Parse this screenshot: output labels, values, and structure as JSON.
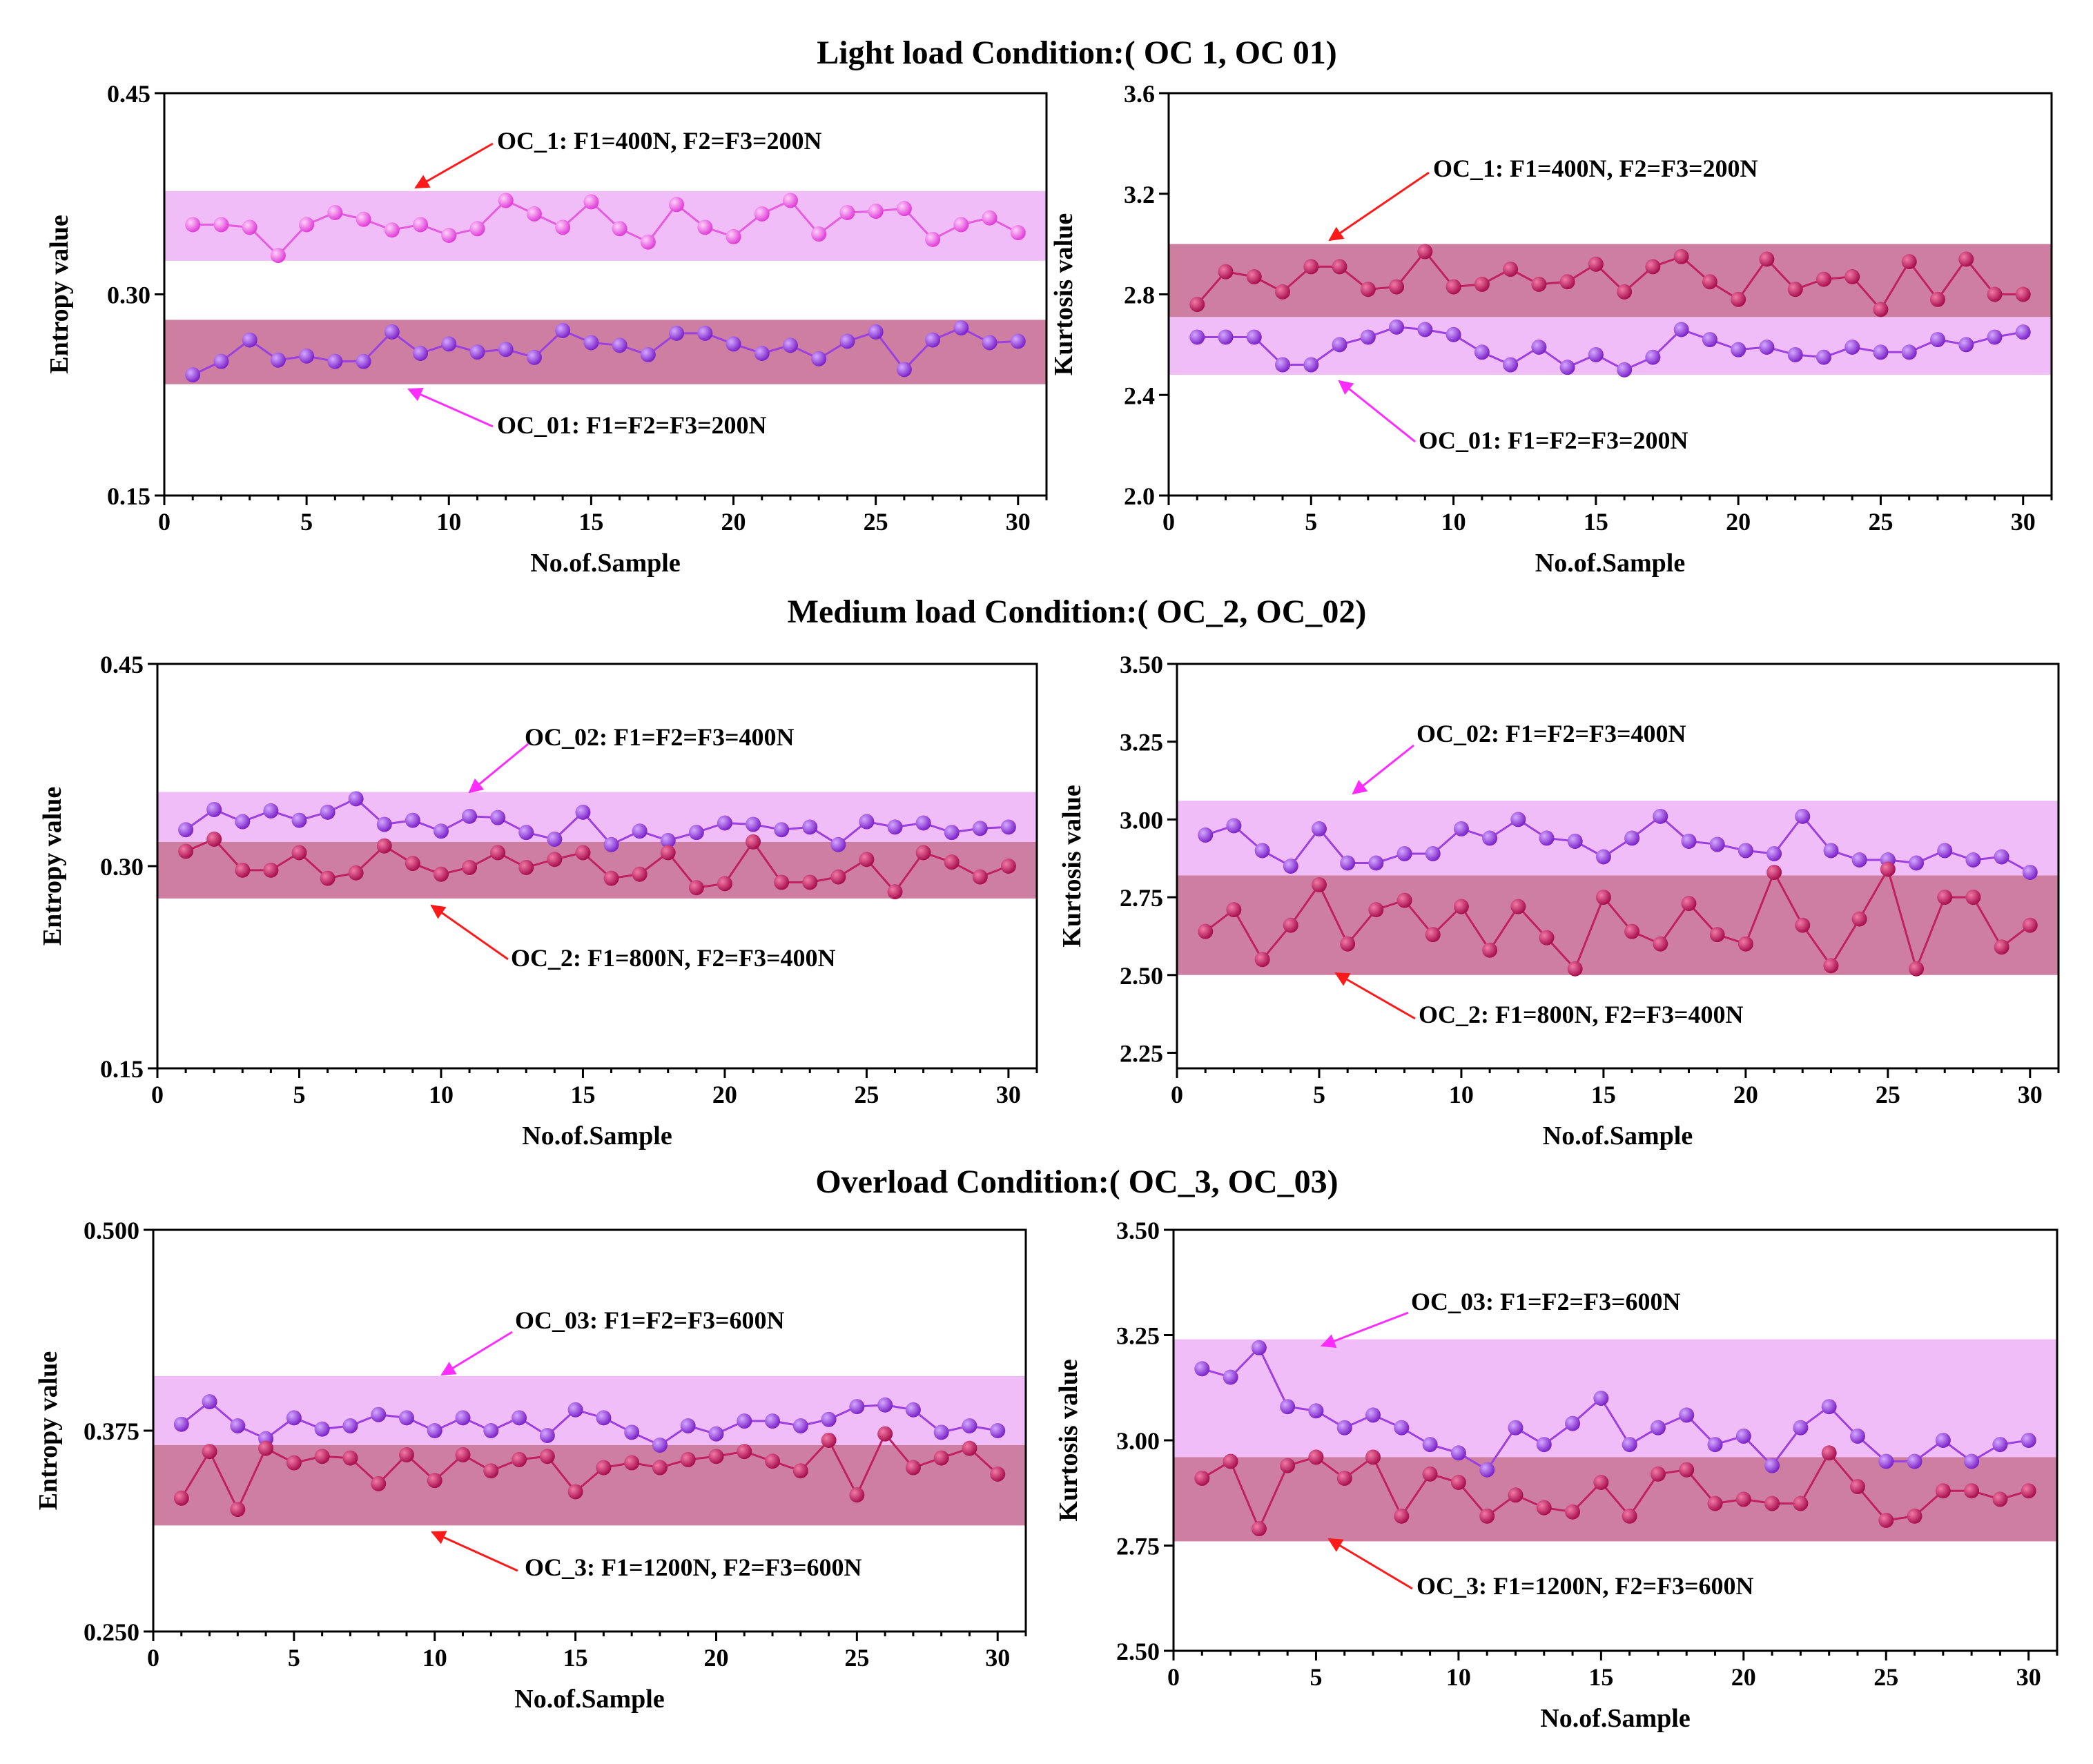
{
  "row_titles": [
    "Light load Condition:( OC  1,  OC  01)",
    "Medium load Condition:( OC_2,  OC_02)",
    "Overload Condition:( OC_3,  OC_03)"
  ],
  "colors": {
    "light_band": "#f0b6f8",
    "dark_band": "#c97197",
    "light_line": "#e55ce0",
    "purple_line": "#9b3fe0",
    "dark_line": "#c0205f",
    "dark_marker": "#8a1b6f",
    "arrow_red": "#ff1a1a",
    "arrow_magenta": "#ff2cff"
  },
  "chart_data": [
    {
      "type": "line",
      "row": 0,
      "col": 0,
      "xlabel": "No.of.Sample",
      "ylabel": "Entropy value",
      "xlim": [
        0,
        31
      ],
      "ylim": [
        0.15,
        0.45
      ],
      "xticks": [
        0,
        5,
        10,
        15,
        20,
        25,
        30
      ],
      "yticks": [
        0.15,
        0.3,
        0.45
      ],
      "ytick_labels": [
        "0.15",
        "0.30",
        "0.45"
      ],
      "bands": [
        {
          "range": [
            0.325,
            0.377
          ],
          "tone": "light"
        },
        {
          "range": [
            0.233,
            0.281
          ],
          "tone": "dark"
        }
      ],
      "series": [
        {
          "name": "OC_1",
          "tone": "light",
          "values": [
            0.352,
            0.352,
            0.35,
            0.329,
            0.352,
            0.361,
            0.356,
            0.348,
            0.352,
            0.344,
            0.349,
            0.37,
            0.36,
            0.35,
            0.369,
            0.349,
            0.339,
            0.367,
            0.35,
            0.343,
            0.36,
            0.37,
            0.345,
            0.361,
            0.362,
            0.364,
            0.341,
            0.352,
            0.357,
            0.346
          ]
        },
        {
          "name": "OC_01",
          "tone": "purple",
          "values": [
            0.24,
            0.25,
            0.266,
            0.251,
            0.254,
            0.25,
            0.25,
            0.272,
            0.256,
            0.263,
            0.257,
            0.259,
            0.253,
            0.273,
            0.264,
            0.262,
            0.255,
            0.271,
            0.271,
            0.263,
            0.256,
            0.262,
            0.252,
            0.265,
            0.272,
            0.244,
            0.266,
            0.275,
            0.264,
            0.265
          ]
        }
      ],
      "annotations": [
        {
          "text": "OC_1:  F1=400N, F2=F3=200N",
          "tone": "red"
        },
        {
          "text": "OC_01: F1=F2=F3=200N",
          "tone": "magenta"
        }
      ]
    },
    {
      "type": "line",
      "row": 0,
      "col": 1,
      "xlabel": "No.of.Sample",
      "ylabel": "Kurtosis value",
      "xlim": [
        0,
        31
      ],
      "ylim": [
        2.0,
        3.6
      ],
      "xticks": [
        0,
        5,
        10,
        15,
        20,
        25,
        30
      ],
      "yticks": [
        2.0,
        2.4,
        2.8,
        3.2,
        3.6
      ],
      "ytick_labels": [
        "2.0",
        "2.4",
        "2.8",
        "3.2",
        "3.6"
      ],
      "bands": [
        {
          "range": [
            2.48,
            2.71
          ],
          "tone": "light"
        },
        {
          "range": [
            2.71,
            3.0
          ],
          "tone": "dark"
        }
      ],
      "series": [
        {
          "name": "OC_1",
          "tone": "dark",
          "values": [
            2.76,
            2.89,
            2.87,
            2.81,
            2.91,
            2.91,
            2.82,
            2.83,
            2.97,
            2.83,
            2.84,
            2.9,
            2.84,
            2.85,
            2.92,
            2.81,
            2.91,
            2.95,
            2.85,
            2.78,
            2.94,
            2.82,
            2.86,
            2.87,
            2.74,
            2.93,
            2.78,
            2.94,
            2.8,
            2.8
          ]
        },
        {
          "name": "OC_01",
          "tone": "purple",
          "values": [
            2.63,
            2.63,
            2.63,
            2.52,
            2.52,
            2.6,
            2.63,
            2.67,
            2.66,
            2.64,
            2.57,
            2.52,
            2.59,
            2.51,
            2.56,
            2.5,
            2.55,
            2.66,
            2.62,
            2.58,
            2.59,
            2.56,
            2.55,
            2.59,
            2.57,
            2.57,
            2.62,
            2.6,
            2.63,
            2.65
          ]
        }
      ],
      "annotations": [
        {
          "text": "OC_1:  F1=400N, F2=F3=200N",
          "tone": "red"
        },
        {
          "text": "OC_01: F1=F2=F3=200N",
          "tone": "magenta"
        }
      ]
    },
    {
      "type": "line",
      "row": 1,
      "col": 0,
      "xlabel": "No.of.Sample",
      "ylabel": "Entropy value",
      "xlim": [
        0,
        31
      ],
      "ylim": [
        0.15,
        0.45
      ],
      "xticks": [
        0,
        5,
        10,
        15,
        20,
        25,
        30
      ],
      "yticks": [
        0.15,
        0.3,
        0.45
      ],
      "ytick_labels": [
        "0.15",
        "0.30",
        "0.45"
      ],
      "bands": [
        {
          "range": [
            0.318,
            0.355
          ],
          "tone": "light"
        },
        {
          "range": [
            0.276,
            0.318
          ],
          "tone": "dark"
        }
      ],
      "series": [
        {
          "name": "OC_02",
          "tone": "purple",
          "values": [
            0.327,
            0.342,
            0.333,
            0.341,
            0.334,
            0.34,
            0.35,
            0.331,
            0.334,
            0.326,
            0.337,
            0.336,
            0.325,
            0.32,
            0.34,
            0.316,
            0.326,
            0.319,
            0.325,
            0.332,
            0.331,
            0.327,
            0.329,
            0.316,
            0.333,
            0.329,
            0.332,
            0.325,
            0.328,
            0.329
          ]
        },
        {
          "name": "OC_2",
          "tone": "dark",
          "values": [
            0.311,
            0.32,
            0.297,
            0.297,
            0.31,
            0.291,
            0.295,
            0.315,
            0.302,
            0.294,
            0.299,
            0.31,
            0.299,
            0.305,
            0.31,
            0.291,
            0.294,
            0.31,
            0.284,
            0.287,
            0.318,
            0.288,
            0.288,
            0.292,
            0.305,
            0.281,
            0.31,
            0.303,
            0.292,
            0.3
          ]
        }
      ],
      "annotations": [
        {
          "text": "OC_02: F1=F2=F3=400N",
          "tone": "magenta"
        },
        {
          "text": "OC_2:  F1=800N, F2=F3=400N",
          "tone": "red"
        }
      ]
    },
    {
      "type": "line",
      "row": 1,
      "col": 1,
      "xlabel": "No.of.Sample",
      "ylabel": "Kurtosis value",
      "xlim": [
        0,
        31
      ],
      "ylim": [
        2.2,
        3.5
      ],
      "xticks": [
        0,
        5,
        10,
        15,
        20,
        25,
        30
      ],
      "yticks": [
        2.25,
        2.5,
        2.75,
        3.0,
        3.25,
        3.5
      ],
      "ytick_labels": [
        "2.25",
        "2.50",
        "2.75",
        "3.00",
        "3.25",
        "3.50"
      ],
      "bands": [
        {
          "range": [
            2.82,
            3.06
          ],
          "tone": "light"
        },
        {
          "range": [
            2.5,
            2.82
          ],
          "tone": "dark"
        }
      ],
      "series": [
        {
          "name": "OC_02",
          "tone": "purple",
          "values": [
            2.95,
            2.98,
            2.9,
            2.85,
            2.97,
            2.86,
            2.86,
            2.89,
            2.89,
            2.97,
            2.94,
            3.0,
            2.94,
            2.93,
            2.88,
            2.94,
            3.01,
            2.93,
            2.92,
            2.9,
            2.89,
            3.01,
            2.9,
            2.87,
            2.87,
            2.86,
            2.9,
            2.87,
            2.88,
            2.83
          ]
        },
        {
          "name": "OC_2",
          "tone": "dark",
          "values": [
            2.64,
            2.71,
            2.55,
            2.66,
            2.79,
            2.6,
            2.71,
            2.74,
            2.63,
            2.72,
            2.58,
            2.72,
            2.62,
            2.52,
            2.75,
            2.64,
            2.6,
            2.73,
            2.63,
            2.6,
            2.83,
            2.66,
            2.53,
            2.68,
            2.84,
            2.52,
            2.75,
            2.75,
            2.59,
            2.66
          ]
        }
      ],
      "annotations": [
        {
          "text": "OC_02: F1=F2=F3=400N",
          "tone": "magenta"
        },
        {
          "text": "OC_2: F1=800N, F2=F3=400N",
          "tone": "red"
        }
      ]
    },
    {
      "type": "line",
      "row": 2,
      "col": 0,
      "xlabel": "No.of.Sample",
      "ylabel": "Entropy value",
      "xlim": [
        0,
        31
      ],
      "ylim": [
        0.25,
        0.5
      ],
      "xticks": [
        0,
        5,
        10,
        15,
        20,
        25,
        30
      ],
      "yticks": [
        0.25,
        0.375,
        0.5
      ],
      "ytick_labels": [
        "0.250",
        "0.375",
        "0.500"
      ],
      "bands": [
        {
          "range": [
            0.366,
            0.409
          ],
          "tone": "light"
        },
        {
          "range": [
            0.316,
            0.366
          ],
          "tone": "dark"
        }
      ],
      "series": [
        {
          "name": "OC_03",
          "tone": "purple",
          "values": [
            0.379,
            0.393,
            0.378,
            0.37,
            0.383,
            0.376,
            0.378,
            0.385,
            0.383,
            0.375,
            0.383,
            0.375,
            0.383,
            0.372,
            0.388,
            0.383,
            0.374,
            0.366,
            0.378,
            0.373,
            0.381,
            0.381,
            0.378,
            0.382,
            0.39,
            0.391,
            0.388,
            0.374,
            0.378,
            0.375
          ]
        },
        {
          "name": "OC_3",
          "tone": "dark",
          "values": [
            0.333,
            0.362,
            0.326,
            0.364,
            0.355,
            0.359,
            0.358,
            0.342,
            0.36,
            0.344,
            0.36,
            0.35,
            0.357,
            0.359,
            0.337,
            0.352,
            0.355,
            0.352,
            0.357,
            0.359,
            0.362,
            0.356,
            0.35,
            0.369,
            0.335,
            0.373,
            0.352,
            0.358,
            0.364,
            0.348
          ]
        }
      ],
      "annotations": [
        {
          "text": "OC_03: F1=F2=F3=600N",
          "tone": "magenta"
        },
        {
          "text": "OC_3:  F1=1200N, F2=F3=600N",
          "tone": "red"
        }
      ]
    },
    {
      "type": "line",
      "row": 2,
      "col": 1,
      "xlabel": "No.of.Sample",
      "ylabel": "Kurtosis value",
      "xlim": [
        0,
        31
      ],
      "ylim": [
        2.5,
        3.5
      ],
      "xticks": [
        0,
        5,
        10,
        15,
        20,
        25,
        30
      ],
      "yticks": [
        2.5,
        2.75,
        3.0,
        3.25,
        3.5
      ],
      "ytick_labels": [
        "2.50",
        "2.75",
        "3.00",
        "3.25",
        "3.50"
      ],
      "bands": [
        {
          "range": [
            2.96,
            3.24
          ],
          "tone": "light"
        },
        {
          "range": [
            2.76,
            2.96
          ],
          "tone": "dark"
        }
      ],
      "series": [
        {
          "name": "OC_03",
          "tone": "purple",
          "values": [
            3.17,
            3.15,
            3.22,
            3.08,
            3.07,
            3.03,
            3.06,
            3.03,
            2.99,
            2.97,
            2.93,
            3.03,
            2.99,
            3.04,
            3.1,
            2.99,
            3.03,
            3.06,
            2.99,
            3.01,
            2.94,
            3.03,
            3.08,
            3.01,
            2.95,
            2.95,
            3.0,
            2.95,
            2.99,
            3.0
          ]
        },
        {
          "name": "OC_3",
          "tone": "dark",
          "values": [
            2.91,
            2.95,
            2.79,
            2.94,
            2.96,
            2.91,
            2.96,
            2.82,
            2.92,
            2.9,
            2.82,
            2.87,
            2.84,
            2.83,
            2.9,
            2.82,
            2.92,
            2.93,
            2.85,
            2.86,
            2.85,
            2.85,
            2.97,
            2.89,
            2.81,
            2.82,
            2.88,
            2.88,
            2.86,
            2.88
          ]
        }
      ],
      "annotations": [
        {
          "text": "OC_03: F1=F2=F3=600N",
          "tone": "magenta"
        },
        {
          "text": "OC_3: F1=1200N, F2=F3=600N",
          "tone": "red"
        }
      ]
    }
  ]
}
